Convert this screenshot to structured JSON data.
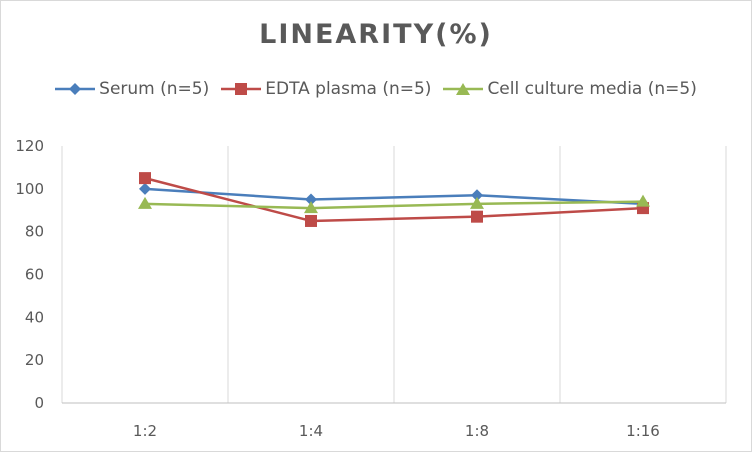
{
  "chart_data": {
    "type": "line",
    "title": "LINEARITY(%)",
    "categories": [
      "1:2",
      "1:4",
      "1:8",
      "1:16"
    ],
    "ylim": [
      0,
      120
    ],
    "yticks": [
      0,
      20,
      40,
      60,
      80,
      100,
      120
    ],
    "grid": "vertical",
    "legend_position": "top",
    "series": [
      {
        "name": "Serum (n=5)",
        "color": "#4a7ebb",
        "marker": "diamond",
        "values": [
          100,
          95,
          97,
          93
        ]
      },
      {
        "name": "EDTA plasma (n=5)",
        "color": "#be4b48",
        "marker": "square",
        "values": [
          105,
          85,
          87,
          91
        ]
      },
      {
        "name": "Cell culture media (n=5)",
        "color": "#98b954",
        "marker": "triangle",
        "values": [
          93,
          91,
          93,
          94
        ]
      }
    ]
  }
}
